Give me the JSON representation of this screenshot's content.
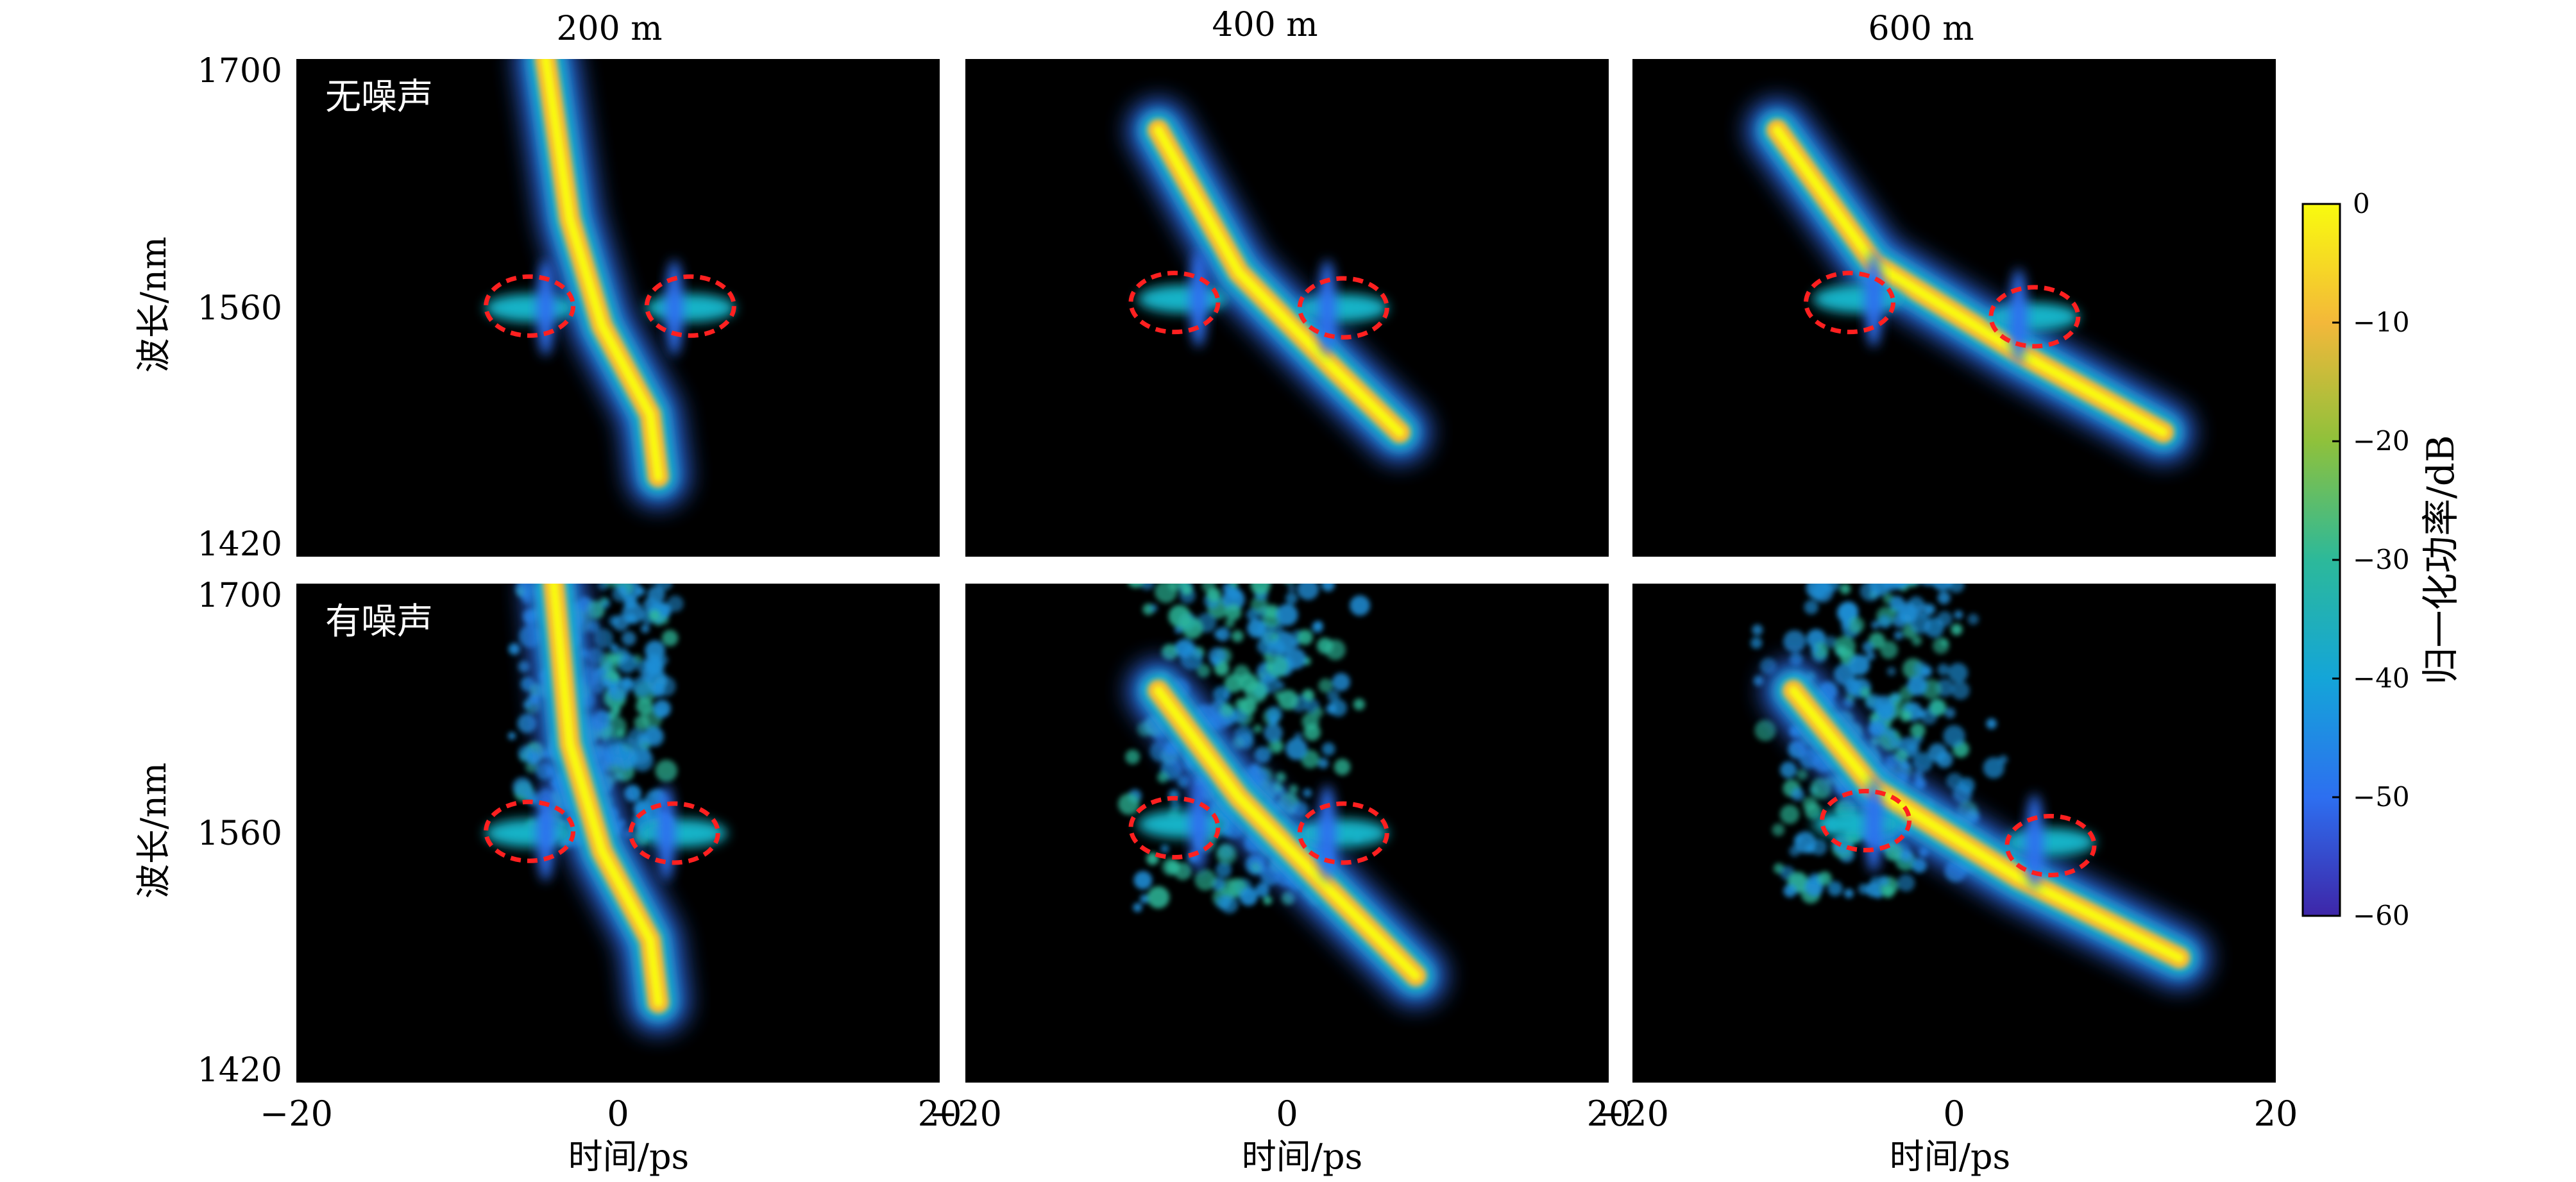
{
  "chart_data": {
    "type": "heatmap",
    "column_titles": [
      "200 m",
      "400 m",
      "600 m"
    ],
    "row_labels": [
      "无噪声",
      "有噪声"
    ],
    "xlabel": "时间/ps",
    "ylabel": "波长/nm",
    "xlim": [
      -20,
      20
    ],
    "ylim": [
      1420,
      1700
    ],
    "x_ticks": [
      {
        "value": -20,
        "label": "−20"
      },
      {
        "value": 0,
        "label": "0"
      },
      {
        "value": 20,
        "label": "20"
      }
    ],
    "y_ticks": [
      {
        "value": 1420,
        "label": "1420"
      },
      {
        "value": 1560,
        "label": "1560"
      },
      {
        "value": 1700,
        "label": "1700"
      }
    ],
    "colorbar": {
      "label": "归一化功率/dB",
      "range": [
        -60,
        0
      ],
      "ticks": [
        {
          "value": 0,
          "label": "0"
        },
        {
          "value": -10,
          "label": "−10"
        },
        {
          "value": -20,
          "label": "−20"
        },
        {
          "value": -30,
          "label": "−30"
        },
        {
          "value": -40,
          "label": "−40"
        },
        {
          "value": -50,
          "label": "−50"
        },
        {
          "value": -60,
          "label": "−60"
        }
      ],
      "colors": [
        "#3e26a8",
        "#2d6ff0",
        "#14a5d8",
        "#2cb99a",
        "#8fc13b",
        "#f3b83a",
        "#f9fb0e"
      ]
    },
    "background_color": "#000000",
    "highlight_color": "#ff2020",
    "panels": [
      {
        "distance": "200 m",
        "noise": false,
        "ridge": [
          [
            -4.5,
            1700
          ],
          [
            -3,
            1610
          ],
          [
            -1,
            1550
          ],
          [
            2,
            1500
          ],
          [
            2.5,
            1465
          ]
        ],
        "side_lobes": [
          {
            "t": -5.5,
            "wl": 1560
          },
          {
            "t": 4.5,
            "wl": 1560
          }
        ],
        "circles": [
          {
            "t": -5.5,
            "wl": 1561
          },
          {
            "t": 4.5,
            "wl": 1561
          }
        ]
      },
      {
        "distance": "400 m",
        "noise": false,
        "ridge": [
          [
            -8,
            1660
          ],
          [
            -3,
            1580
          ],
          [
            3,
            1525
          ],
          [
            7,
            1490
          ]
        ],
        "side_lobes": [
          {
            "t": -6.5,
            "wl": 1565
          },
          {
            "t": 3.5,
            "wl": 1560
          }
        ],
        "circles": [
          {
            "t": -7,
            "wl": 1563
          },
          {
            "t": 3.5,
            "wl": 1560
          }
        ]
      },
      {
        "distance": "600 m",
        "noise": false,
        "ridge": [
          [
            -11,
            1660
          ],
          [
            -5,
            1585
          ],
          [
            4,
            1535
          ],
          [
            13,
            1490
          ]
        ],
        "side_lobes": [
          {
            "t": -6,
            "wl": 1565
          },
          {
            "t": 5,
            "wl": 1555
          }
        ],
        "circles": [
          {
            "t": -6.5,
            "wl": 1563
          },
          {
            "t": 5,
            "wl": 1555
          }
        ]
      },
      {
        "distance": "200 m",
        "noise": true,
        "ridge": [
          [
            -4,
            1700
          ],
          [
            -3,
            1610
          ],
          [
            -1,
            1550
          ],
          [
            2,
            1500
          ],
          [
            2.5,
            1465
          ]
        ],
        "side_lobes": [
          {
            "t": -5.5,
            "wl": 1560
          },
          {
            "t": 4,
            "wl": 1560
          }
        ],
        "circles": [
          {
            "t": -5.5,
            "wl": 1561
          },
          {
            "t": 3.5,
            "wl": 1560
          }
        ]
      },
      {
        "distance": "400 m",
        "noise": true,
        "ridge": [
          [
            -8,
            1640
          ],
          [
            -3,
            1580
          ],
          [
            3,
            1525
          ],
          [
            8,
            1480
          ]
        ],
        "side_lobes": [
          {
            "t": -6.5,
            "wl": 1565
          },
          {
            "t": 3.5,
            "wl": 1560
          }
        ],
        "circles": [
          {
            "t": -7,
            "wl": 1563
          },
          {
            "t": 3.5,
            "wl": 1560
          }
        ]
      },
      {
        "distance": "600 m",
        "noise": true,
        "ridge": [
          [
            -10,
            1640
          ],
          [
            -5,
            1585
          ],
          [
            4,
            1535
          ],
          [
            14,
            1490
          ]
        ],
        "side_lobes": [
          {
            "t": -6,
            "wl": 1565
          },
          {
            "t": 6,
            "wl": 1555
          }
        ],
        "circles": [
          {
            "t": -5.5,
            "wl": 1567
          },
          {
            "t": 6,
            "wl": 1553
          }
        ]
      }
    ]
  }
}
